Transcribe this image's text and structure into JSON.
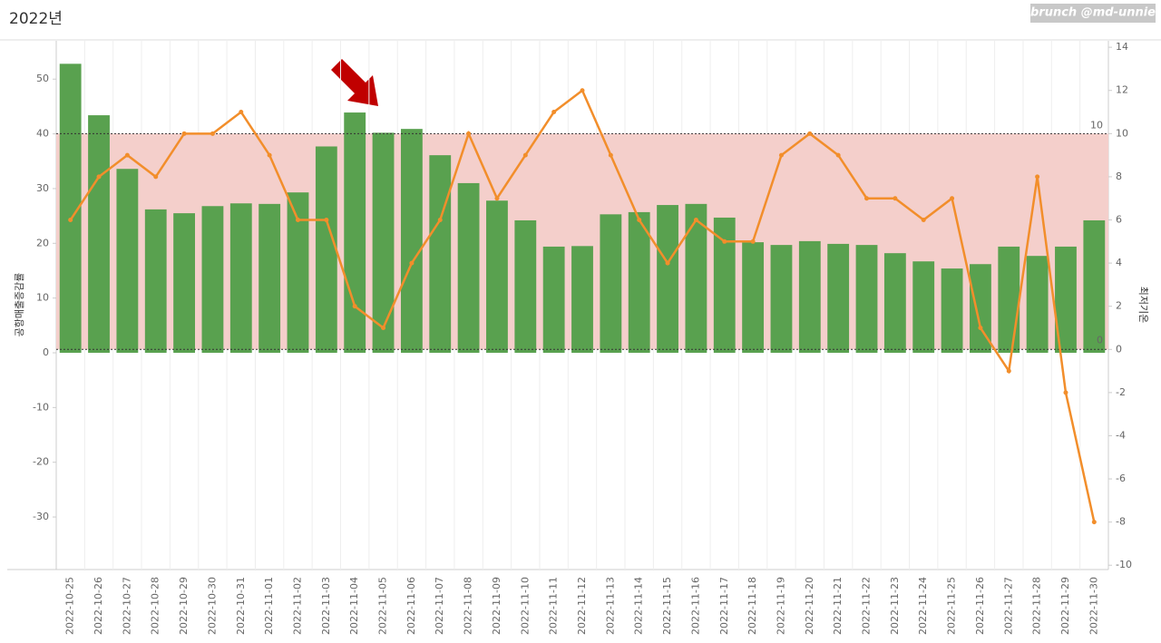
{
  "chart_data": {
    "type": "bar-line",
    "title": "2022년",
    "watermark": "brunch @md-unnie",
    "y_label": "공항매출증감률",
    "y2_label": "최저기온",
    "categories": [
      "2022-10-25",
      "2022-10-26",
      "2022-10-27",
      "2022-10-28",
      "2022-10-29",
      "2022-10-30",
      "2022-10-31",
      "2022-11-01",
      "2022-11-02",
      "2022-11-03",
      "2022-11-04",
      "2022-11-05",
      "2022-11-06",
      "2022-11-07",
      "2022-11-08",
      "2022-11-09",
      "2022-11-10",
      "2022-11-11",
      "2022-11-12",
      "2022-11-13",
      "2022-11-14",
      "2022-11-15",
      "2022-11-16",
      "2022-11-17",
      "2022-11-18",
      "2022-11-19",
      "2022-11-20",
      "2022-11-21",
      "2022-11-22",
      "2022-11-23",
      "2022-11-24",
      "2022-11-25",
      "2022-11-26",
      "2022-11-27",
      "2022-11-28",
      "2022-11-29",
      "2022-11-30"
    ],
    "series": [
      {
        "name": "공항매출증감률",
        "type": "bar",
        "color": "#59a14f",
        "axis": "y",
        "values": [
          52.8,
          43.4,
          33.6,
          26.2,
          25.5,
          26.8,
          27.3,
          27.2,
          29.3,
          37.7,
          43.9,
          40.2,
          40.9,
          36.1,
          31.0,
          27.8,
          24.2,
          19.4,
          19.5,
          25.3,
          25.7,
          27.0,
          27.2,
          24.7,
          20.2,
          19.7,
          20.4,
          19.9,
          19.7,
          18.2,
          16.7,
          15.4,
          16.2,
          19.4,
          17.7,
          19.4,
          24.2
        ]
      },
      {
        "name": "최저기온",
        "type": "line",
        "color": "#f28e2b",
        "axis": "y2",
        "values": [
          6,
          8,
          9,
          8,
          10,
          10,
          11,
          9,
          6,
          6,
          2,
          1,
          4,
          6,
          10,
          7,
          9,
          11,
          12,
          9,
          6,
          4,
          6,
          5,
          5,
          9,
          10,
          9,
          7,
          7,
          6,
          7,
          1,
          -1,
          8,
          -2,
          -8
        ]
      }
    ],
    "ylim": [
      -39.6,
      57
    ],
    "yticks": [
      -30,
      -20,
      -10,
      0,
      10,
      20,
      30,
      40,
      50
    ],
    "y2lim": [
      -10.2,
      14.3
    ],
    "y2ticks": [
      -10,
      -8,
      -6,
      -4,
      -2,
      0,
      2,
      4,
      6,
      8,
      10,
      12,
      14
    ],
    "reference_band": {
      "axis": "y2",
      "from": 0,
      "to": 10,
      "color": "#f4cfcb"
    }
  }
}
